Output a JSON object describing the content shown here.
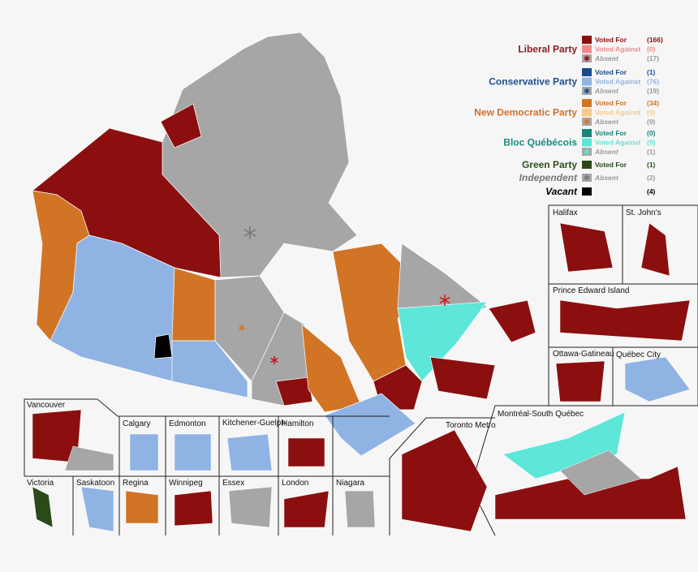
{
  "legend": {
    "parties": [
      {
        "name": "Liberal Party",
        "color": "#8b1a1a",
        "rows": [
          {
            "label": "Voted For",
            "count": "(166)",
            "color": "#8b0f0f"
          },
          {
            "label": "Voted Against",
            "count": "(0)",
            "color": "#f08a8a"
          },
          {
            "label": "Absent",
            "count": "(17)",
            "color": "#999999"
          }
        ]
      },
      {
        "name": "Conservative Party",
        "color": "#1f4f8f",
        "rows": [
          {
            "label": "Voted For",
            "count": "(1)",
            "color": "#1a4a8a"
          },
          {
            "label": "Voted Against",
            "count": "(76)",
            "color": "#8fb3e3"
          },
          {
            "label": "Absent",
            "count": "(19)",
            "color": "#999999"
          }
        ]
      },
      {
        "name": "New Democratic Party",
        "color": "#d0702a",
        "rows": [
          {
            "label": "Voted For",
            "count": "(34)",
            "color": "#d27425"
          },
          {
            "label": "Voted Against",
            "count": "(0)",
            "color": "#f7c98a"
          },
          {
            "label": "Absent",
            "count": "(9)",
            "color": "#999999"
          }
        ]
      },
      {
        "name": "Bloc Québécois",
        "color": "#1a8a80",
        "rows": [
          {
            "label": "Voted For",
            "count": "(0)",
            "color": "#17857a"
          },
          {
            "label": "Voted Against",
            "count": "(9)",
            "color": "#5ee6d8"
          },
          {
            "label": "Absent",
            "count": "(1)",
            "color": "#999999"
          }
        ]
      },
      {
        "name": "Green Party",
        "color": "#2f4f1a",
        "rows": [
          {
            "label": "Voted For",
            "count": "(1)",
            "color": "#2a4a18"
          }
        ]
      },
      {
        "name": "Independent",
        "color": "#777777",
        "rows": [
          {
            "label": "Absent",
            "count": "(2)",
            "color": "#999999"
          }
        ]
      },
      {
        "name": "Vacant",
        "color": "#000000",
        "rows": [
          {
            "count": "(4)",
            "color": "#000000"
          }
        ]
      }
    ]
  },
  "insets": [
    "Halifax",
    "St. John's",
    "Prince Edward Island",
    "Ottawa-Gatineau",
    "Québec City",
    "Montréal-South Québec",
    "Toronto Metro",
    "Vancouver",
    "Victoria",
    "Saskatoon",
    "Calgary",
    "Edmonton",
    "Kitchener-Guelph",
    "Hamilton",
    "Regina",
    "Winnipeg",
    "Essex",
    "London",
    "Niagara"
  ]
}
